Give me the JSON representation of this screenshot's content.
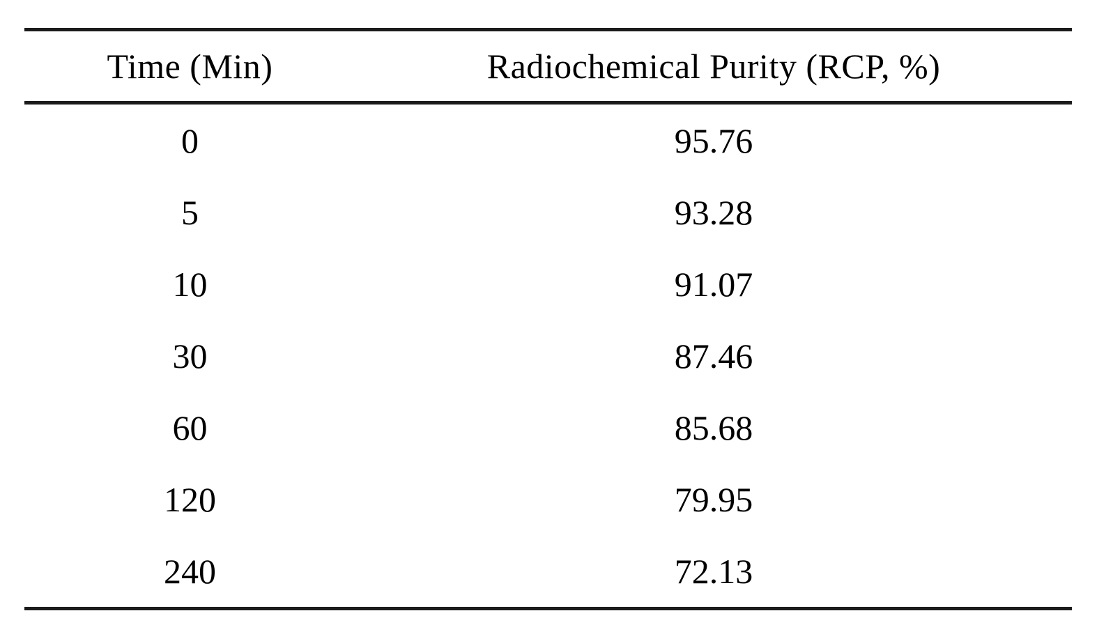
{
  "table": {
    "columns": [
      {
        "label": "Time (Min)"
      },
      {
        "label": "Radiochemical Purity (RCP, %)"
      }
    ],
    "rows": [
      {
        "time": "0",
        "rcp": "95.76"
      },
      {
        "time": "5",
        "rcp": "93.28"
      },
      {
        "time": "10",
        "rcp": "91.07"
      },
      {
        "time": "30",
        "rcp": "87.46"
      },
      {
        "time": "60",
        "rcp": "85.68"
      },
      {
        "time": "120",
        "rcp": "79.95"
      },
      {
        "time": "240",
        "rcp": "72.13"
      }
    ]
  },
  "chart_data": {
    "type": "table",
    "title": "",
    "columns": [
      "Time (Min)",
      "Radiochemical Purity (RCP, %)"
    ],
    "x": [
      0,
      5,
      10,
      30,
      60,
      120,
      240
    ],
    "series": [
      {
        "name": "Radiochemical Purity (RCP, %)",
        "values": [
          95.76,
          93.28,
          91.07,
          87.46,
          85.68,
          79.95,
          72.13
        ]
      }
    ]
  },
  "colors": {
    "background": "#ffffff",
    "text": "#000000",
    "rule": "#1b1b1b"
  }
}
